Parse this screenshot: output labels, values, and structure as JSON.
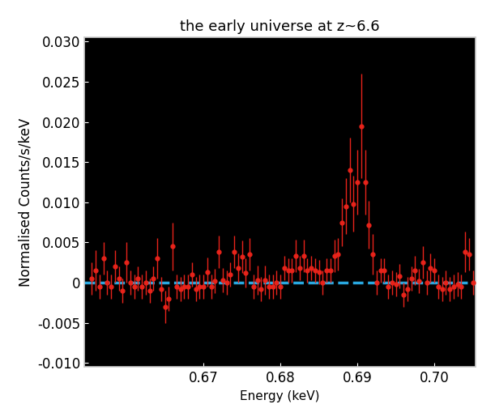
{
  "chart_data": {
    "type": "scatter",
    "title": "the early universe at z~6.6",
    "x_label": "Energy (keV)",
    "y_label": "Normalised Counts/s/keV",
    "xlim": [
      0.6545,
      0.7053
    ],
    "ylim": [
      -0.0105,
      0.0305
    ],
    "xticks": [
      0.67,
      0.68,
      0.69,
      {
        "value": 0.7,
        "label": "0.70"
      }
    ],
    "yticks": [
      {
        "value": -0.01,
        "label": "-0.010"
      },
      -0.005,
      0,
      0.005,
      {
        "value": 0.01,
        "label": "0.010"
      },
      0.015,
      {
        "value": 0.02,
        "label": "0.020"
      },
      0.025,
      {
        "value": 0.03,
        "label": "0.030"
      }
    ],
    "grid": false,
    "series": [
      {
        "type": "scatter",
        "color": "#e8231a",
        "marker": "circle",
        "x": [
          0.6555,
          0.656,
          0.6565,
          0.657,
          0.6575,
          0.658,
          0.6585,
          0.659,
          0.6595,
          0.66,
          0.6605,
          0.661,
          0.6615,
          0.662,
          0.6625,
          0.663,
          0.6635,
          0.664,
          0.6645,
          0.665,
          0.6655,
          0.666,
          0.6665,
          0.667,
          0.6675,
          0.668,
          0.6685,
          0.669,
          0.6695,
          0.67,
          0.6705,
          0.671,
          0.6715,
          0.672,
          0.6725,
          0.673,
          0.6735,
          0.674,
          0.6745,
          0.675,
          0.6755,
          0.676,
          0.6765,
          0.677,
          0.6775,
          0.678,
          0.6785,
          0.679,
          0.6795,
          0.68,
          0.6805,
          0.681,
          0.6815,
          0.682,
          0.6825,
          0.683,
          0.6835,
          0.684,
          0.6845,
          0.685,
          0.6855,
          0.686,
          0.6865,
          0.687,
          0.6875,
          0.688,
          0.6885,
          0.689,
          0.6895,
          0.69,
          0.6905,
          0.691,
          0.6915,
          0.692,
          0.6925,
          0.693,
          0.6935,
          0.694,
          0.6945,
          0.695,
          0.6955,
          0.696,
          0.6965,
          0.697,
          0.6975,
          0.698,
          0.6985,
          0.699,
          0.6995,
          0.7,
          0.7005,
          0.701,
          0.7015,
          0.702,
          0.7025,
          0.703,
          0.7035,
          0.704,
          0.7045,
          0.705
        ],
        "values": [
          0.0005,
          0.0015,
          -0.0005,
          0.003,
          0.0,
          -0.0005,
          0.002,
          0.0005,
          -0.001,
          0.0025,
          0.0,
          -0.0005,
          0.0005,
          -0.0005,
          0.0,
          -0.001,
          0.0005,
          0.003,
          -0.0008,
          -0.003,
          -0.002,
          0.0045,
          -0.0005,
          -0.0008,
          -0.0005,
          -0.0005,
          0.001,
          -0.0008,
          -0.0005,
          -0.0005,
          0.0013,
          -0.0005,
          0.0002,
          0.0038,
          0.0003,
          0.0,
          0.001,
          0.0038,
          0.0018,
          0.0032,
          0.0012,
          0.0035,
          -0.0005,
          0.0003,
          -0.0008,
          0.0003,
          -0.0005,
          -0.0005,
          0.0,
          -0.0005,
          0.0018,
          0.0015,
          0.0015,
          0.0033,
          0.0018,
          0.0033,
          0.0015,
          0.0018,
          0.0015,
          0.0013,
          0.0,
          0.0015,
          0.0015,
          0.0033,
          0.0035,
          0.0075,
          0.0095,
          0.014,
          0.0098,
          0.0125,
          0.0195,
          0.0125,
          0.0072,
          0.0035,
          0.0,
          0.0015,
          0.0015,
          -0.0005,
          0.0,
          -0.0002,
          0.0008,
          -0.0015,
          -0.0008,
          0.0005,
          0.0015,
          0.0002,
          0.0025,
          0.0,
          0.0018,
          0.0015,
          -0.0005,
          -0.0008,
          0.0,
          -0.0008,
          -0.0005,
          -0.0002,
          -0.0005,
          0.0038,
          0.0035,
          0.0
        ],
        "errors": [
          0.002,
          0.0025,
          0.0015,
          0.002,
          0.0015,
          0.0015,
          0.002,
          0.0015,
          0.0015,
          0.0025,
          0.0015,
          0.0015,
          0.0015,
          0.0015,
          0.0015,
          0.0015,
          0.0015,
          0.0025,
          0.0015,
          0.002,
          0.0015,
          0.003,
          0.0015,
          0.0015,
          0.0015,
          0.0015,
          0.0015,
          0.0015,
          0.0015,
          0.0015,
          0.0018,
          0.0015,
          0.0015,
          0.002,
          0.0015,
          0.0015,
          0.0015,
          0.002,
          0.0018,
          0.002,
          0.0018,
          0.002,
          0.0015,
          0.0018,
          0.0015,
          0.0018,
          0.0015,
          0.0015,
          0.0015,
          0.0015,
          0.0015,
          0.0015,
          0.0015,
          0.002,
          0.0015,
          0.002,
          0.0015,
          0.0015,
          0.0015,
          0.0015,
          0.0015,
          0.0015,
          0.0015,
          0.002,
          0.002,
          0.003,
          0.0035,
          0.004,
          0.0035,
          0.004,
          0.0065,
          0.004,
          0.003,
          0.0025,
          0.0015,
          0.0015,
          0.0015,
          0.0015,
          0.0015,
          0.0015,
          0.0015,
          0.0015,
          0.0015,
          0.0015,
          0.0018,
          0.0015,
          0.002,
          0.0015,
          0.0018,
          0.0015,
          0.0015,
          0.0015,
          0.0015,
          0.0015,
          0.0015,
          0.0015,
          0.0015,
          0.0025,
          0.002,
          0.0015
        ]
      },
      {
        "type": "line",
        "color": "#29a8e0",
        "line_style": "dashed",
        "x": [
          0.6545,
          0.7053
        ],
        "values": [
          0,
          0
        ]
      }
    ]
  }
}
